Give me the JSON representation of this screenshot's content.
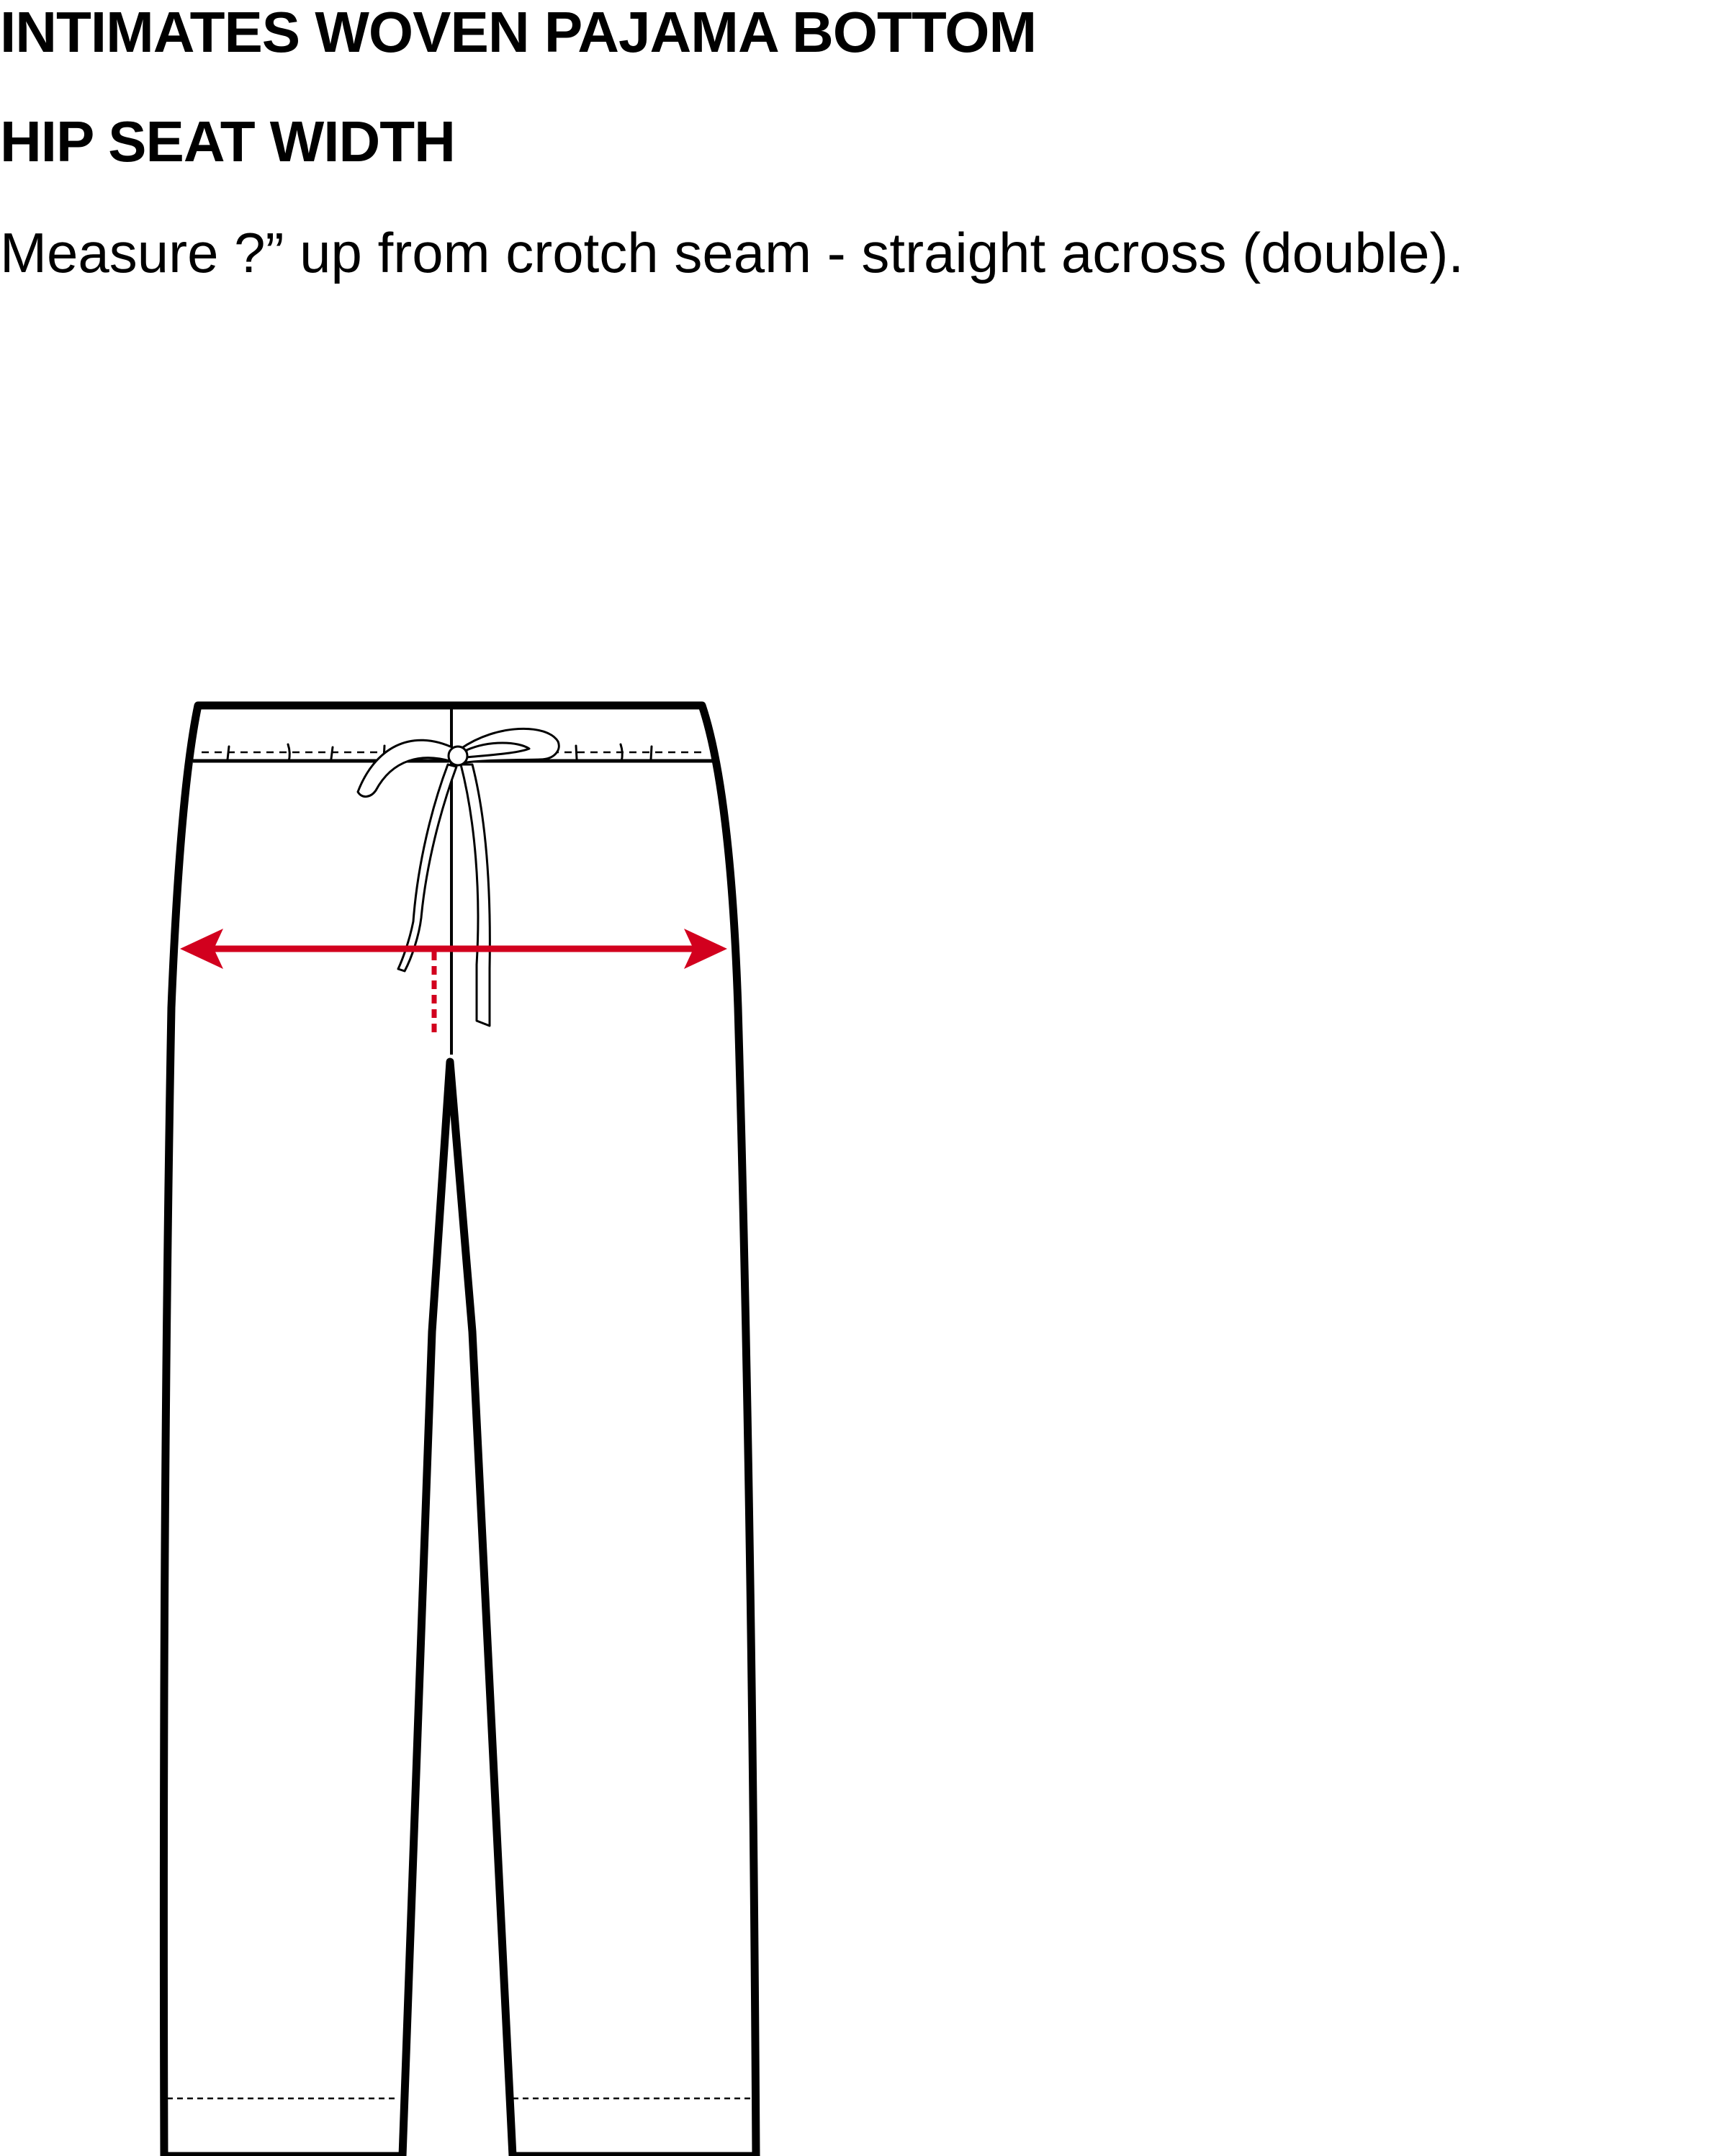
{
  "header": {
    "title": "INTIMATES WOVEN PAJAMA BOTTOM",
    "subtitle": "HIP SEAT WIDTH",
    "instruction": "Measure ?” up from crotch seam - straight across (double)."
  },
  "diagram": {
    "subject": "pajama-bottom-flat-sketch",
    "measurement": "hip-seat-width",
    "colors": {
      "outline": "#000000",
      "measure_line": "#d2001e",
      "background": "#ffffff"
    }
  }
}
